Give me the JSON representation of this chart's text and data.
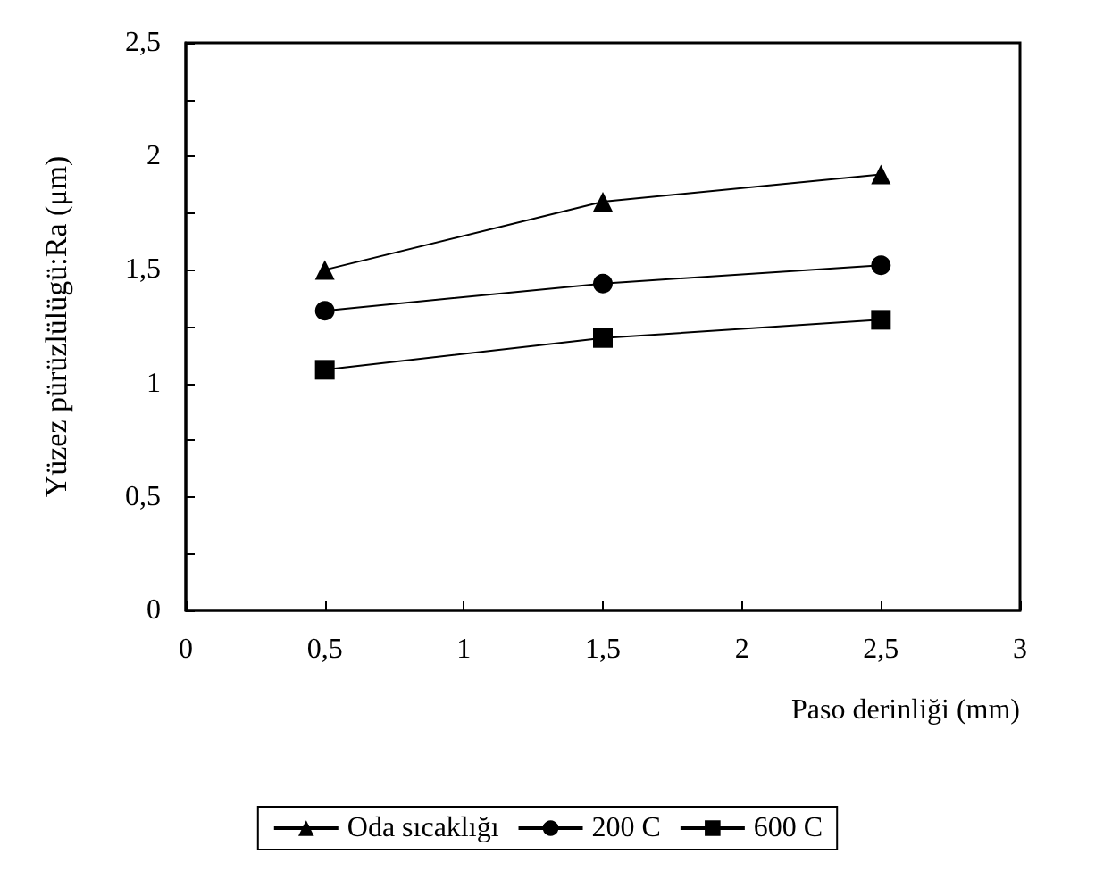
{
  "chart_data": {
    "type": "line",
    "xlabel": "Paso derinliği (mm)",
    "ylabel": "Yüzez pürüzlülügü:Ra (μm)",
    "x": [
      0.5,
      1.5,
      2.5
    ],
    "series": [
      {
        "name": "Oda sıcaklığı",
        "color": "#000000",
        "marker": "triangle",
        "values": [
          1.5,
          1.8,
          1.92
        ]
      },
      {
        "name": "200 C",
        "color": "#000000",
        "marker": "circle",
        "values": [
          1.32,
          1.44,
          1.52
        ]
      },
      {
        "name": "600 C",
        "color": "#000000",
        "marker": "square",
        "values": [
          1.06,
          1.2,
          1.28
        ]
      }
    ],
    "xlim": [
      0,
      3
    ],
    "xticks": [
      0,
      {
        "value": 0.5,
        "label": "0,5"
      },
      1,
      {
        "value": 1.5,
        "label": "1,5"
      },
      2,
      {
        "value": 2.5,
        "label": "2,5"
      },
      3
    ],
    "ylim": [
      0,
      2.5
    ],
    "yticks": [
      0,
      {
        "value": 0.25,
        "label": null
      },
      {
        "value": 0.5,
        "label": "0,5"
      },
      {
        "value": 0.75,
        "label": null
      },
      1,
      {
        "value": 1.25,
        "label": null
      },
      {
        "value": 1.5,
        "label": "1,5"
      },
      {
        "value": 1.75,
        "label": null
      },
      2,
      {
        "value": 2.25,
        "label": null
      },
      {
        "value": 2.5,
        "label": "2,5"
      }
    ],
    "grid": false,
    "legend": "bottom",
    "line_style": "solid"
  }
}
